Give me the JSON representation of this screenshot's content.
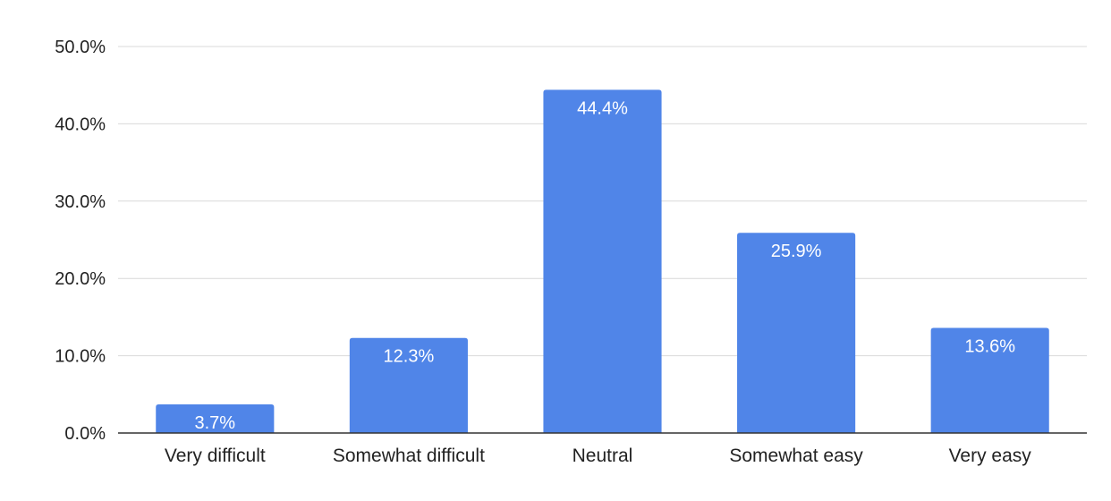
{
  "chart_data": {
    "type": "bar",
    "title": "",
    "xlabel": "",
    "ylabel": "",
    "categories": [
      "Very difficult",
      "Somewhat difficult",
      "Neutral",
      "Somewhat easy",
      "Very easy"
    ],
    "values": [
      3.7,
      12.3,
      44.4,
      25.9,
      13.6
    ],
    "data_labels": [
      "3.7%",
      "12.3%",
      "44.4%",
      "25.9%",
      "13.6%"
    ],
    "ylim": [
      0,
      50
    ],
    "yticks": [
      0,
      10,
      20,
      30,
      40,
      50
    ],
    "ytick_labels": [
      "0.0%",
      "10.0%",
      "20.0%",
      "30.0%",
      "40.0%",
      "50.0%"
    ],
    "grid": true,
    "legend": "none",
    "bar_color": "#5085e8"
  }
}
